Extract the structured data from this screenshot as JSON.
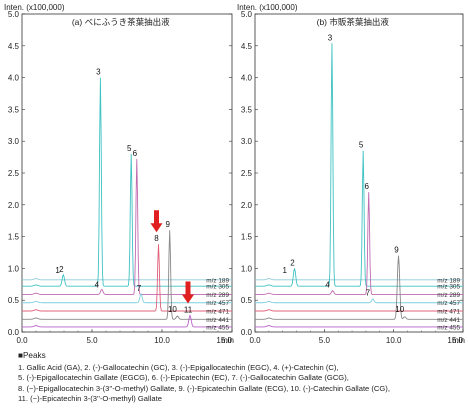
{
  "peaks_legend": {
    "title": "■Peaks",
    "lines": [
      "1. Gallic Acid (GA), 2. (-)-Gallocatechin (GC), 3. (-)-Epigallocatechin (EGC), 4. (+)-Catechin (C),",
      "5. (-)-Epigallocatechin Gallate (EGCG), 6. (-)-Epicatechin (EC), 7. (-)-Gallocatechin Gallate (GCG),",
      "8. (−)-Epigallocatechin 3-(3''-O-methyl) Gallate, 9. (-)-Epicatechin Gallate (ECG), 10. (-)-Catechin Gallate (CG),",
      "11. (−)-Epicatechin 3-(3''-O-methyl) Gallate"
    ]
  },
  "chart_data": [
    {
      "type": "line",
      "title": "(a) べにふうき茶葉抽出液",
      "ylabel": "Inten. (x100,000)",
      "xlabel": "min",
      "xlim": [
        0,
        15
      ],
      "ylim": [
        0,
        5.0
      ],
      "x_ticks": [
        "0.0",
        "5.0",
        "10.0",
        "15.0"
      ],
      "y_ticks": [
        "0.0",
        "0.5",
        "1.0",
        "1.5",
        "2.0",
        "2.5",
        "3.0",
        "3.5",
        "4.0",
        "4.5",
        "5.0"
      ],
      "series": [
        {
          "name": "m/z 189",
          "color": "#8ec9d6",
          "baseline": 0.82,
          "peaks": [
            {
              "label": "1",
              "x": 2.9,
              "height": 0.0
            }
          ]
        },
        {
          "name": "m/z 305",
          "color": "#3fc2c2",
          "baseline": 0.72,
          "peaks": [
            {
              "label": "2",
              "x": 2.95,
              "height": 0.18
            },
            {
              "label": "3",
              "x": 5.6,
              "height": 3.28
            },
            {
              "label": "5",
              "x": 7.8,
              "height": 2.08
            }
          ]
        },
        {
          "name": "m/z 289",
          "color": "#c06ab0",
          "baseline": 0.59,
          "peaks": [
            {
              "label": "4",
              "x": 5.7,
              "height": 0.08
            },
            {
              "label": "6",
              "x": 8.2,
              "height": 2.13
            }
          ]
        },
        {
          "name": "m/z 457",
          "color": "#7fcfe0",
          "baseline": 0.46,
          "peaks": [
            {
              "label": "7",
              "x": 8.5,
              "height": 0.14
            }
          ]
        },
        {
          "name": "m/z 471",
          "color": "#e0607a",
          "baseline": 0.33,
          "peaks": [
            {
              "label": "8",
              "x": 9.75,
              "height": 1.05
            }
          ]
        },
        {
          "name": "m/z 441",
          "color": "#888888",
          "baseline": 0.2,
          "peaks": [
            {
              "label": "9",
              "x": 10.55,
              "height": 1.4
            },
            {
              "label": "10",
              "x": 11.1,
              "height": 0.05
            }
          ]
        },
        {
          "name": "m/z 455",
          "color": "#b860c8",
          "baseline": 0.08,
          "peaks": [
            {
              "label": "11",
              "x": 12.0,
              "height": 0.18
            }
          ]
        }
      ],
      "arrows": [
        "8",
        "11"
      ]
    },
    {
      "type": "line",
      "title": "(b) 市販茶葉抽出液",
      "ylabel": "Inten. (x100,000)",
      "xlabel": "min",
      "xlim": [
        0,
        15
      ],
      "ylim": [
        0,
        5.0
      ],
      "x_ticks": [
        "0.0",
        "5.0",
        "10.0",
        "15.0"
      ],
      "y_ticks": [
        "0.0",
        "0.5",
        "1.0",
        "1.5",
        "2.0",
        "2.5",
        "3.0",
        "3.5",
        "4.0",
        "4.5",
        "5.0"
      ],
      "series": [
        {
          "name": "m/z 189",
          "color": "#8ec9d6",
          "baseline": 0.82,
          "peaks": [
            {
              "label": "1",
              "x": 2.5,
              "height": 0.0
            }
          ]
        },
        {
          "name": "m/z 305",
          "color": "#3fc2c2",
          "baseline": 0.72,
          "peaks": [
            {
              "label": "2",
              "x": 2.85,
              "height": 0.28
            },
            {
              "label": "3",
              "x": 5.55,
              "height": 3.82
            },
            {
              "label": "5",
              "x": 7.8,
              "height": 2.13
            }
          ]
        },
        {
          "name": "m/z 289",
          "color": "#c06ab0",
          "baseline": 0.59,
          "peaks": [
            {
              "label": "4",
              "x": 5.6,
              "height": 0.06
            },
            {
              "label": "6",
              "x": 8.2,
              "height": 1.61
            }
          ]
        },
        {
          "name": "m/z 457",
          "color": "#7fcfe0",
          "baseline": 0.46,
          "peaks": [
            {
              "label": "7",
              "x": 8.5,
              "height": 0.06
            }
          ]
        },
        {
          "name": "m/z 471",
          "color": "#e0607a",
          "baseline": 0.33,
          "peaks": []
        },
        {
          "name": "m/z 441",
          "color": "#888888",
          "baseline": 0.2,
          "peaks": [
            {
              "label": "9",
              "x": 10.35,
              "height": 1.0
            },
            {
              "label": "10",
              "x": 10.8,
              "height": 0.04
            }
          ]
        },
        {
          "name": "m/z 455",
          "color": "#b860c8",
          "baseline": 0.08,
          "peaks": []
        }
      ],
      "arrows": []
    }
  ]
}
